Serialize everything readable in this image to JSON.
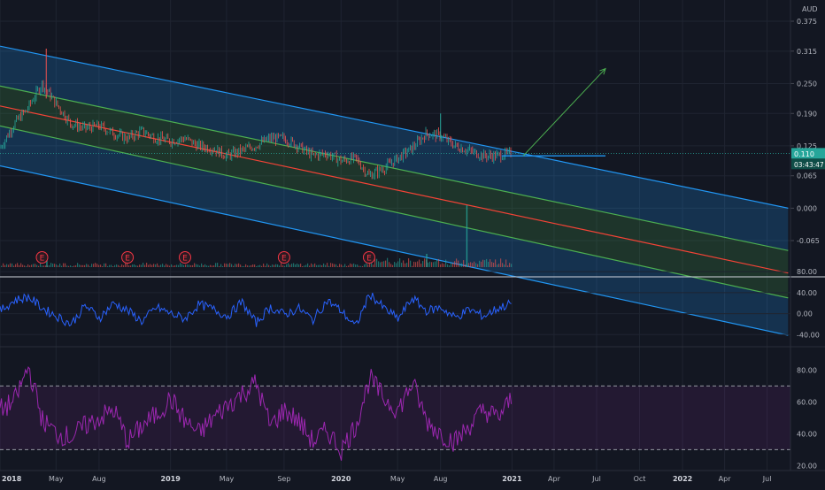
{
  "chart_data": [
    {
      "type": "candlestick",
      "pane": "price",
      "currency_label": "AUD",
      "y_ticks": [
        "0.375",
        "0.315",
        "0.250",
        "0.190",
        "0.125",
        "0.065",
        "0.000",
        "-0.065"
      ],
      "y_tick_values": [
        0.375,
        0.315,
        0.25,
        0.19,
        0.125,
        0.065,
        0.0,
        -0.065
      ],
      "last_price_label": "0.110",
      "last_price": 0.11,
      "countdown_label": "03:43:47",
      "series_points": [
        [
          "2018-01-01",
          0.12
        ],
        [
          "2018-02-01",
          0.17
        ],
        [
          "2018-03-01",
          0.2
        ],
        [
          "2018-04-01",
          0.25
        ],
        [
          "2018-05-01",
          0.21
        ],
        [
          "2018-06-01",
          0.17
        ],
        [
          "2018-07-01",
          0.16
        ],
        [
          "2018-08-01",
          0.165
        ],
        [
          "2018-09-01",
          0.15
        ],
        [
          "2018-10-01",
          0.14
        ],
        [
          "2018-11-01",
          0.155
        ],
        [
          "2018-12-01",
          0.14
        ],
        [
          "2019-01-01",
          0.135
        ],
        [
          "2019-02-01",
          0.14
        ],
        [
          "2019-03-01",
          0.125
        ],
        [
          "2019-04-01",
          0.12
        ],
        [
          "2019-05-01",
          0.105
        ],
        [
          "2019-06-01",
          0.115
        ],
        [
          "2019-07-01",
          0.125
        ],
        [
          "2019-08-01",
          0.14
        ],
        [
          "2019-09-01",
          0.14
        ],
        [
          "2019-10-01",
          0.125
        ],
        [
          "2019-11-01",
          0.105
        ],
        [
          "2019-12-01",
          0.11
        ],
        [
          "2020-01-01",
          0.095
        ],
        [
          "2020-02-01",
          0.1
        ],
        [
          "2020-03-01",
          0.065
        ],
        [
          "2020-04-01",
          0.08
        ],
        [
          "2020-05-01",
          0.1
        ],
        [
          "2020-06-01",
          0.12
        ],
        [
          "2020-07-01",
          0.15
        ],
        [
          "2020-08-01",
          0.145
        ],
        [
          "2020-09-01",
          0.125
        ],
        [
          "2020-10-01",
          0.115
        ],
        [
          "2020-11-01",
          0.105
        ],
        [
          "2020-12-01",
          0.105
        ],
        [
          "2021-01-01",
          0.11
        ]
      ],
      "channel": {
        "start": "2018-01-01",
        "end": "2022-08-15",
        "outer_top": [
          0.325,
          0.0
        ],
        "inner_top": [
          0.245,
          -0.085
        ],
        "median": [
          0.205,
          -0.13
        ],
        "inner_bottom": [
          0.165,
          -0.18
        ],
        "outer_bottom": [
          0.085,
          -0.255
        ]
      },
      "horizontal_line": {
        "start": "2020-12-10",
        "end": "2021-07-20",
        "value": 0.105
      },
      "arrow": {
        "from": [
          "2021-01-25",
          0.105
        ],
        "to": [
          "2021-07-20",
          0.28
        ]
      },
      "earnings_markers": {
        "label": "E",
        "dates": [
          "2018-04-01",
          "2018-10-01",
          "2019-02-01",
          "2019-09-01",
          "2020-03-01"
        ]
      },
      "volume_spike_dates": [
        "2018-04-10",
        "2020-07-01",
        "2020-09-25"
      ]
    },
    {
      "type": "line",
      "pane": "oscillator",
      "y_ticks": [
        "80.00",
        "40.00",
        "0.00",
        "-40.00"
      ],
      "ylim": [
        -48,
        82
      ],
      "values": [
        5,
        25,
        32,
        10,
        -5,
        -20,
        15,
        -8,
        20,
        5,
        -15,
        12,
        0,
        -10,
        18,
        8,
        -5,
        22,
        -18,
        12,
        -2,
        10,
        -12,
        25,
        5,
        -25,
        38,
        10,
        -10,
        30,
        5,
        12,
        -8,
        8,
        -5,
        10,
        20
      ]
    },
    {
      "type": "line",
      "pane": "rsi",
      "y_ticks": [
        "80.00",
        "60.00",
        "40.00",
        "20.00"
      ],
      "ylim": [
        18,
        88
      ],
      "band": [
        30,
        70
      ],
      "values": [
        55,
        60,
        82,
        48,
        40,
        38,
        45,
        50,
        55,
        35,
        45,
        52,
        62,
        48,
        40,
        50,
        58,
        65,
        72,
        45,
        55,
        48,
        35,
        42,
        30,
        45,
        75,
        62,
        55,
        72,
        48,
        40,
        35,
        45,
        55,
        50,
        62
      ]
    },
    {
      "type": "time_axis",
      "date_range": [
        "2018-01-01",
        "2022-08-20"
      ],
      "labels": [
        "2018",
        "May",
        "Aug",
        "2019",
        "May",
        "Sep",
        "2020",
        "May",
        "Aug",
        "2021",
        "Apr",
        "Jul",
        "Oct",
        "2022",
        "Apr",
        "Jul"
      ],
      "label_dates": [
        "2018-01-01",
        "2018-05-01",
        "2018-08-01",
        "2019-01-01",
        "2019-05-01",
        "2019-09-01",
        "2020-01-01",
        "2020-05-01",
        "2020-08-01",
        "2021-01-01",
        "2021-04-01",
        "2021-07-01",
        "2021-10-01",
        "2022-01-01",
        "2022-04-01",
        "2022-07-01"
      ]
    }
  ],
  "colors": {
    "background": "#131722",
    "grid": "#1f2431",
    "axis_text": "#b2b5be",
    "candle_up": "#26a69a",
    "candle_down": "#ef5350",
    "channel_outer": "#2196f3",
    "channel_inner": "#4caf50",
    "channel_median": "#f44336",
    "arrow": "#4caf50",
    "price_tag": "#26a69a",
    "oscillator": "#2962ff",
    "rsi": "#9c27b0",
    "earnings": "#f23645"
  }
}
